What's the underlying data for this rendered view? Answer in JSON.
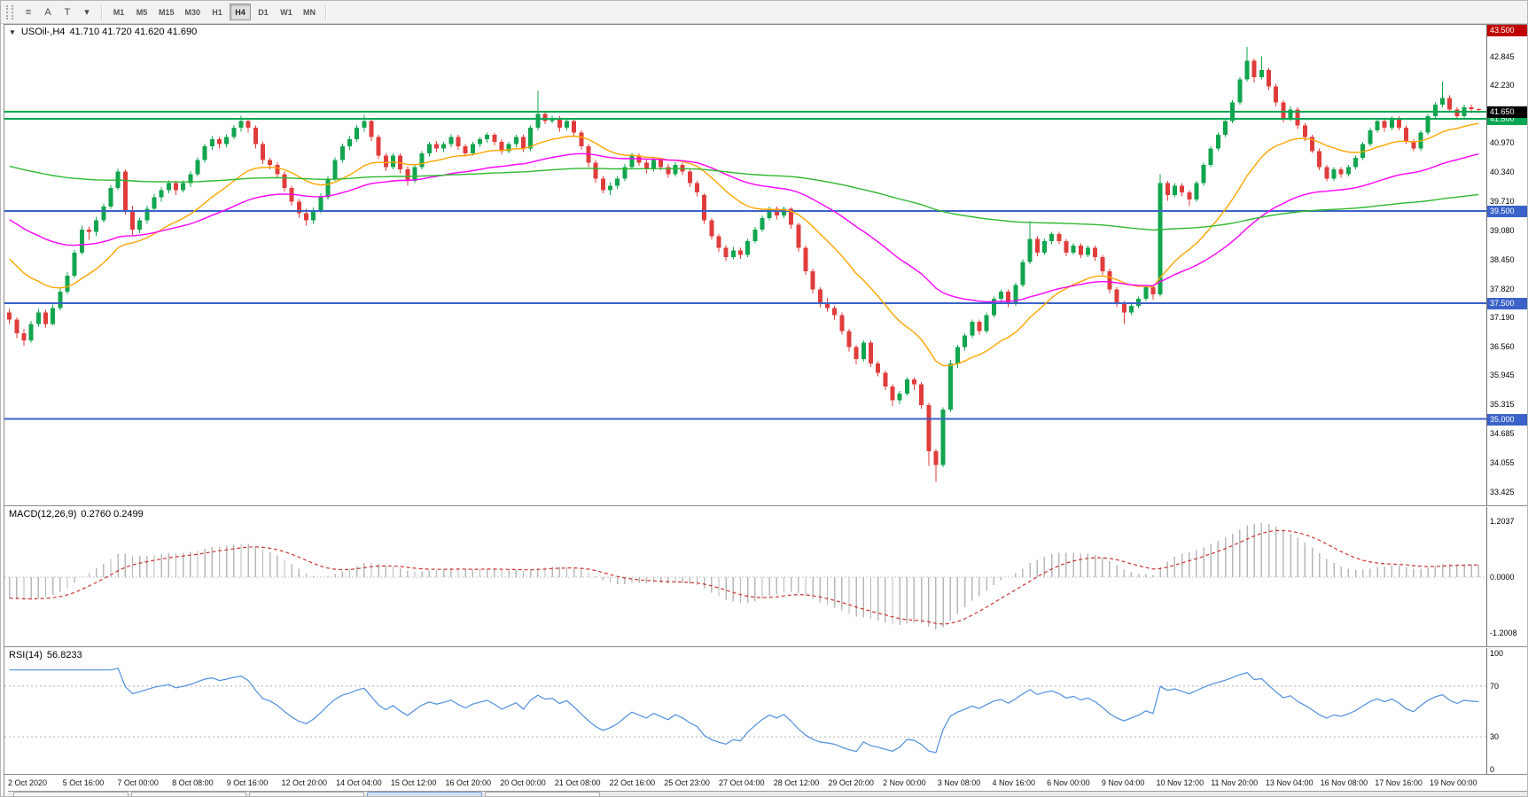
{
  "toolbar": {
    "icons": [
      {
        "name": "chart-list-icon",
        "glyph": "≡"
      },
      {
        "name": "text-tool-icon",
        "glyph": "A"
      },
      {
        "name": "label-tool-icon",
        "glyph": "T"
      },
      {
        "name": "period-dropdown-icon",
        "glyph": "▾"
      }
    ],
    "timeframes": [
      "M1",
      "M5",
      "M15",
      "M30",
      "H1",
      "H4",
      "D1",
      "W1",
      "MN"
    ],
    "active_timeframe": "H4"
  },
  "chart": {
    "collapse_glyph": "▼",
    "header_symbol": "USOil-,H4",
    "header_ohlc": "41.710 41.720 41.620 41.690"
  },
  "indicators": {
    "macd": {
      "title": "MACD(12,26,9)",
      "values": "0.2760 0.2499"
    },
    "rsi": {
      "title": "RSI(14)",
      "values": "56.8233"
    }
  },
  "bottom_tabs": {
    "count": 5,
    "active_index": 3
  },
  "chart_data": {
    "type": "candlestick",
    "symbol": "USOil-",
    "timeframe": "H4",
    "current_bar": {
      "open": 41.71,
      "high": 41.72,
      "low": 41.62,
      "close": 41.69
    },
    "price_scale": {
      "min": 33.11,
      "max": 43.53
    },
    "price_ticks": [
      42.845,
      42.23,
      40.97,
      40.34,
      39.71,
      39.08,
      38.45,
      37.82,
      37.19,
      36.56,
      35.945,
      35.315,
      34.685,
      34.055,
      33.425
    ],
    "price_badges": [
      {
        "price": 43.5,
        "color": "#c00000"
      },
      {
        "price": 41.5,
        "color": "#00a651"
      },
      {
        "price": 41.65,
        "color": "#000000"
      },
      {
        "price": 39.5,
        "color": "#3a62c8"
      },
      {
        "price": 37.5,
        "color": "#3a62c8"
      },
      {
        "price": 35.0,
        "color": "#3a62c8"
      }
    ],
    "hlines": [
      {
        "price": 41.65,
        "color": "#00a651",
        "width": 2
      },
      {
        "price": 41.5,
        "color": "#00a651",
        "width": 2
      },
      {
        "price": 39.5,
        "color": "#3a62c8",
        "width": 2
      },
      {
        "price": 37.5,
        "color": "#3a62c8",
        "width": 2
      },
      {
        "price": 35.0,
        "color": "#3a62c8",
        "width": 2
      }
    ],
    "candle_colors": {
      "up": "#10a54e",
      "down": "#e03c3c"
    },
    "moving_averages": [
      {
        "period": 20,
        "color": "#ffa500",
        "start_value": 38.6
      },
      {
        "period": 50,
        "color": "#ff00ff",
        "start_value": 39.4
      },
      {
        "period": 200,
        "color": "#2eb82e",
        "start_value": 40.5
      }
    ],
    "time_labels": [
      "2 Oct 2020",
      "5 Oct 16:00",
      "7 Oct 00:00",
      "8 Oct 08:00",
      "9 Oct 16:00",
      "12 Oct 20:00",
      "14 Oct 04:00",
      "15 Oct 12:00",
      "16 Oct 20:00",
      "20 Oct 00:00",
      "21 Oct 08:00",
      "22 Oct 16:00",
      "25 Oct 23:00",
      "27 Oct 04:00",
      "28 Oct 12:00",
      "29 Oct 20:00",
      "2 Nov 00:00",
      "3 Nov 08:00",
      "4 Nov 16:00",
      "6 Nov 00:00",
      "9 Nov 04:00",
      "10 Nov 12:00",
      "11 Nov 20:00",
      "13 Nov 04:00",
      "16 Nov 08:00",
      "17 Nov 16:00",
      "19 Nov 00:00"
    ],
    "macd": {
      "fast": 12,
      "slow": 26,
      "signal": 9,
      "fast_seed": 37.6,
      "slow_seed": 38.05,
      "signal_seed": -0.45,
      "scale": {
        "min": -1.5,
        "max": 1.5
      },
      "ticks": [
        1.2037,
        0.0,
        -1.2008
      ],
      "histogram_color": "#b8b8b8",
      "signal_color": "#cc3333"
    },
    "rsi": {
      "period": 14,
      "levels": [
        70,
        30
      ],
      "ticks": [
        100,
        70,
        30,
        0
      ],
      "scale": {
        "min": 0,
        "max": 100
      },
      "line_color": "#4f8fde",
      "level_color": "#b0b0b0"
    },
    "candles": [
      [
        37.3,
        37.38,
        37.05,
        37.15
      ],
      [
        37.15,
        37.2,
        36.75,
        36.85
      ],
      [
        36.85,
        36.95,
        36.58,
        36.7
      ],
      [
        36.7,
        37.12,
        36.65,
        37.05
      ],
      [
        37.05,
        37.38,
        37.0,
        37.3
      ],
      [
        37.3,
        37.36,
        36.98,
        37.05
      ],
      [
        37.05,
        37.48,
        37.02,
        37.4
      ],
      [
        37.4,
        37.82,
        37.35,
        37.75
      ],
      [
        37.75,
        38.18,
        37.7,
        38.1
      ],
      [
        38.1,
        38.66,
        38.05,
        38.6
      ],
      [
        38.6,
        39.18,
        38.55,
        39.1
      ],
      [
        39.1,
        39.16,
        38.88,
        39.05
      ],
      [
        39.05,
        39.38,
        38.95,
        39.3
      ],
      [
        39.3,
        39.66,
        39.25,
        39.6
      ],
      [
        39.6,
        40.06,
        39.55,
        40.0
      ],
      [
        40.0,
        40.42,
        39.95,
        40.35
      ],
      [
        40.35,
        40.4,
        39.42,
        39.5
      ],
      [
        39.5,
        39.62,
        38.98,
        39.1
      ],
      [
        39.1,
        39.36,
        39.02,
        39.3
      ],
      [
        39.3,
        39.62,
        39.22,
        39.55
      ],
      [
        39.55,
        39.86,
        39.48,
        39.8
      ],
      [
        39.8,
        40.02,
        39.7,
        39.95
      ],
      [
        39.95,
        40.16,
        39.88,
        40.1
      ],
      [
        40.1,
        40.15,
        39.85,
        39.95
      ],
      [
        39.95,
        40.16,
        39.9,
        40.1
      ],
      [
        40.1,
        40.36,
        40.02,
        40.3
      ],
      [
        40.3,
        40.66,
        40.25,
        40.6
      ],
      [
        40.6,
        40.96,
        40.55,
        40.9
      ],
      [
        40.9,
        41.12,
        40.82,
        41.05
      ],
      [
        41.05,
        41.1,
        40.85,
        40.95
      ],
      [
        40.95,
        41.16,
        40.88,
        41.1
      ],
      [
        41.1,
        41.36,
        41.05,
        41.3
      ],
      [
        41.3,
        41.56,
        41.22,
        41.45
      ],
      [
        41.45,
        41.5,
        41.2,
        41.3
      ],
      [
        41.3,
        41.35,
        40.85,
        40.95
      ],
      [
        40.95,
        41.0,
        40.52,
        40.6
      ],
      [
        40.6,
        40.65,
        40.4,
        40.5
      ],
      [
        40.5,
        40.56,
        40.22,
        40.3
      ],
      [
        40.3,
        40.35,
        39.92,
        40.0
      ],
      [
        40.0,
        40.05,
        39.62,
        39.7
      ],
      [
        39.7,
        39.76,
        39.36,
        39.45
      ],
      [
        39.45,
        39.55,
        39.18,
        39.3
      ],
      [
        39.3,
        39.58,
        39.22,
        39.5
      ],
      [
        39.5,
        39.88,
        39.45,
        39.8
      ],
      [
        39.8,
        40.26,
        39.75,
        40.2
      ],
      [
        40.2,
        40.66,
        40.15,
        40.6
      ],
      [
        40.6,
        40.96,
        40.55,
        40.9
      ],
      [
        40.9,
        41.12,
        40.82,
        41.05
      ],
      [
        41.05,
        41.36,
        41.0,
        41.3
      ],
      [
        41.3,
        41.58,
        41.22,
        41.45
      ],
      [
        41.45,
        41.5,
        41.02,
        41.1
      ],
      [
        41.1,
        41.15,
        40.62,
        40.7
      ],
      [
        40.7,
        40.76,
        40.36,
        40.45
      ],
      [
        40.45,
        40.76,
        40.4,
        40.7
      ],
      [
        40.7,
        40.75,
        40.32,
        40.4
      ],
      [
        40.4,
        40.46,
        40.05,
        40.15
      ],
      [
        40.15,
        40.5,
        40.1,
        40.45
      ],
      [
        40.45,
        40.8,
        40.4,
        40.75
      ],
      [
        40.75,
        41.0,
        40.68,
        40.95
      ],
      [
        40.95,
        41.02,
        40.78,
        40.85
      ],
      [
        40.85,
        41.0,
        40.78,
        40.95
      ],
      [
        40.95,
        41.16,
        40.88,
        41.1
      ],
      [
        41.1,
        41.15,
        40.82,
        40.9
      ],
      [
        40.9,
        40.95,
        40.68,
        40.75
      ],
      [
        40.75,
        41.0,
        40.7,
        40.95
      ],
      [
        40.95,
        41.1,
        40.88,
        41.05
      ],
      [
        41.05,
        41.2,
        40.98,
        41.15
      ],
      [
        41.15,
        41.2,
        40.92,
        41.0
      ],
      [
        41.0,
        41.05,
        40.72,
        40.8
      ],
      [
        40.8,
        41.0,
        40.75,
        40.95
      ],
      [
        40.95,
        41.15,
        40.88,
        41.1
      ],
      [
        41.1,
        41.15,
        40.78,
        40.85
      ],
      [
        40.85,
        41.35,
        40.8,
        41.3
      ],
      [
        41.3,
        42.1,
        41.25,
        41.6
      ],
      [
        41.6,
        41.65,
        41.38,
        41.45
      ],
      [
        41.45,
        41.56,
        41.4,
        41.5
      ],
      [
        41.5,
        41.55,
        41.22,
        41.3
      ],
      [
        41.3,
        41.5,
        41.25,
        41.45
      ],
      [
        41.45,
        41.5,
        41.12,
        41.2
      ],
      [
        41.2,
        41.25,
        40.82,
        40.9
      ],
      [
        40.9,
        40.95,
        40.45,
        40.55
      ],
      [
        40.55,
        40.6,
        40.1,
        40.2
      ],
      [
        40.2,
        40.26,
        39.88,
        39.95
      ],
      [
        39.95,
        40.12,
        39.85,
        40.05
      ],
      [
        40.05,
        40.26,
        39.98,
        40.2
      ],
      [
        40.2,
        40.52,
        40.15,
        40.45
      ],
      [
        40.45,
        40.76,
        40.4,
        40.7
      ],
      [
        40.7,
        40.75,
        40.48,
        40.55
      ],
      [
        40.55,
        40.6,
        40.32,
        40.4
      ],
      [
        40.4,
        40.66,
        40.35,
        40.6
      ],
      [
        40.6,
        40.65,
        40.38,
        40.45
      ],
      [
        40.45,
        40.52,
        40.22,
        40.3
      ],
      [
        40.3,
        40.56,
        40.25,
        40.5
      ],
      [
        40.5,
        40.55,
        40.28,
        40.35
      ],
      [
        40.35,
        40.4,
        40.02,
        40.1
      ],
      [
        40.1,
        40.15,
        39.82,
        39.9
      ],
      [
        39.85,
        39.88,
        39.22,
        39.3
      ],
      [
        39.3,
        39.35,
        38.88,
        38.95
      ],
      [
        38.95,
        39.0,
        38.62,
        38.7
      ],
      [
        38.7,
        38.76,
        38.42,
        38.5
      ],
      [
        38.5,
        38.72,
        38.45,
        38.65
      ],
      [
        38.65,
        38.7,
        38.46,
        38.55
      ],
      [
        38.55,
        38.9,
        38.5,
        38.85
      ],
      [
        38.85,
        39.15,
        38.8,
        39.1
      ],
      [
        39.1,
        39.4,
        39.05,
        39.35
      ],
      [
        39.35,
        39.6,
        39.3,
        39.55
      ],
      [
        39.55,
        39.6,
        39.32,
        39.4
      ],
      [
        39.4,
        39.6,
        39.35,
        39.55
      ],
      [
        39.55,
        39.58,
        39.12,
        39.2
      ],
      [
        39.2,
        39.25,
        38.62,
        38.7
      ],
      [
        38.7,
        38.75,
        38.12,
        38.2
      ],
      [
        38.2,
        38.25,
        37.72,
        37.8
      ],
      [
        37.8,
        37.85,
        37.42,
        37.5
      ],
      [
        37.5,
        37.62,
        37.32,
        37.4
      ],
      [
        37.4,
        37.45,
        37.15,
        37.25
      ],
      [
        37.25,
        37.3,
        36.82,
        36.9
      ],
      [
        36.9,
        36.95,
        36.46,
        36.55
      ],
      [
        36.55,
        36.6,
        36.18,
        36.3
      ],
      [
        36.3,
        36.7,
        36.25,
        36.65
      ],
      [
        36.65,
        36.7,
        36.12,
        36.2
      ],
      [
        36.2,
        36.25,
        35.92,
        36.0
      ],
      [
        36.0,
        36.05,
        35.62,
        35.7
      ],
      [
        35.7,
        35.75,
        35.28,
        35.4
      ],
      [
        35.4,
        35.6,
        35.32,
        35.55
      ],
      [
        35.55,
        35.9,
        35.5,
        35.85
      ],
      [
        35.85,
        35.9,
        35.62,
        35.75
      ],
      [
        35.75,
        35.8,
        35.22,
        35.3
      ],
      [
        35.3,
        35.35,
        33.98,
        34.3
      ],
      [
        34.3,
        34.35,
        33.64,
        34.0
      ],
      [
        34.0,
        35.25,
        33.95,
        35.2
      ],
      [
        35.2,
        36.28,
        35.15,
        36.2
      ],
      [
        36.2,
        36.6,
        36.1,
        36.55
      ],
      [
        36.55,
        36.85,
        36.48,
        36.8
      ],
      [
        36.8,
        37.15,
        36.75,
        37.1
      ],
      [
        37.1,
        37.15,
        36.82,
        36.9
      ],
      [
        36.9,
        37.3,
        36.85,
        37.25
      ],
      [
        37.25,
        37.65,
        37.2,
        37.6
      ],
      [
        37.6,
        37.8,
        37.52,
        37.75
      ],
      [
        37.75,
        37.8,
        37.42,
        37.5
      ],
      [
        37.5,
        37.95,
        37.45,
        37.9
      ],
      [
        37.9,
        38.45,
        37.85,
        38.4
      ],
      [
        38.4,
        39.28,
        38.35,
        38.9
      ],
      [
        38.9,
        38.95,
        38.52,
        38.6
      ],
      [
        38.6,
        38.9,
        38.55,
        38.85
      ],
      [
        38.85,
        39.05,
        38.78,
        39.0
      ],
      [
        39.0,
        39.05,
        38.78,
        38.85
      ],
      [
        38.85,
        38.9,
        38.52,
        38.6
      ],
      [
        38.6,
        38.8,
        38.55,
        38.75
      ],
      [
        38.75,
        38.8,
        38.48,
        38.55
      ],
      [
        38.55,
        38.75,
        38.5,
        38.7
      ],
      [
        38.7,
        38.75,
        38.42,
        38.5
      ],
      [
        38.5,
        38.55,
        38.12,
        38.2
      ],
      [
        38.2,
        38.25,
        37.72,
        37.8
      ],
      [
        37.8,
        37.85,
        37.42,
        37.5
      ],
      [
        37.5,
        37.55,
        37.05,
        37.3
      ],
      [
        37.3,
        37.52,
        37.25,
        37.45
      ],
      [
        37.45,
        37.65,
        37.4,
        37.6
      ],
      [
        37.6,
        37.9,
        37.55,
        37.85
      ],
      [
        37.85,
        37.9,
        37.58,
        37.7
      ],
      [
        37.7,
        40.3,
        37.65,
        40.1
      ],
      [
        40.1,
        40.15,
        39.72,
        39.85
      ],
      [
        39.85,
        40.1,
        39.8,
        40.05
      ],
      [
        40.05,
        40.1,
        39.82,
        39.9
      ],
      [
        39.9,
        39.95,
        39.62,
        39.75
      ],
      [
        39.75,
        40.15,
        39.7,
        40.1
      ],
      [
        40.1,
        40.55,
        40.05,
        40.5
      ],
      [
        40.5,
        40.9,
        40.45,
        40.85
      ],
      [
        40.85,
        41.2,
        40.8,
        41.15
      ],
      [
        41.15,
        41.5,
        41.1,
        41.45
      ],
      [
        41.45,
        41.9,
        41.4,
        41.85
      ],
      [
        41.85,
        42.4,
        41.8,
        42.35
      ],
      [
        42.35,
        43.05,
        42.3,
        42.75
      ],
      [
        42.75,
        42.8,
        42.28,
        42.4
      ],
      [
        42.4,
        42.85,
        42.35,
        42.55
      ],
      [
        42.55,
        42.6,
        42.12,
        42.2
      ],
      [
        42.2,
        42.25,
        41.76,
        41.85
      ],
      [
        41.85,
        41.9,
        41.42,
        41.5
      ],
      [
        41.5,
        41.76,
        41.45,
        41.7
      ],
      [
        41.7,
        41.75,
        41.28,
        41.35
      ],
      [
        41.35,
        41.4,
        41.02,
        41.1
      ],
      [
        41.1,
        41.15,
        40.76,
        40.8
      ],
      [
        40.8,
        40.85,
        40.38,
        40.45
      ],
      [
        40.45,
        40.5,
        40.14,
        40.2
      ],
      [
        40.2,
        40.45,
        40.15,
        40.4
      ],
      [
        40.4,
        40.45,
        40.22,
        40.3
      ],
      [
        40.3,
        40.5,
        40.25,
        40.45
      ],
      [
        40.45,
        40.7,
        40.4,
        40.65
      ],
      [
        40.65,
        41.0,
        40.6,
        40.95
      ],
      [
        40.95,
        41.3,
        40.9,
        41.25
      ],
      [
        41.25,
        41.5,
        41.2,
        41.45
      ],
      [
        41.45,
        41.5,
        41.22,
        41.3
      ],
      [
        41.3,
        41.55,
        41.25,
        41.5
      ],
      [
        41.5,
        41.55,
        41.25,
        41.3
      ],
      [
        41.3,
        41.35,
        40.95,
        41.0
      ],
      [
        41.0,
        41.05,
        40.8,
        40.85
      ],
      [
        40.85,
        41.25,
        40.8,
        41.2
      ],
      [
        41.2,
        41.6,
        41.15,
        41.55
      ],
      [
        41.55,
        41.85,
        41.5,
        41.8
      ],
      [
        41.8,
        42.3,
        41.75,
        41.95
      ],
      [
        41.95,
        42.0,
        41.65,
        41.7
      ],
      [
        41.7,
        41.75,
        41.5,
        41.55
      ],
      [
        41.55,
        41.8,
        41.5,
        41.75
      ],
      [
        41.75,
        41.8,
        41.62,
        41.71
      ],
      [
        41.71,
        41.72,
        41.62,
        41.69
      ]
    ]
  }
}
